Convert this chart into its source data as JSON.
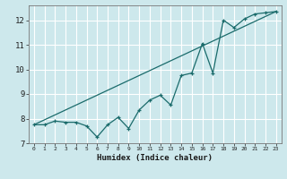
{
  "xlabel": "Humidex (Indice chaleur)",
  "bg_color": "#cde8ec",
  "grid_color": "#ffffff",
  "line_color": "#1a6b6b",
  "xlim": [
    -0.5,
    23.5
  ],
  "ylim": [
    7.0,
    12.6
  ],
  "yticks": [
    7,
    8,
    9,
    10,
    11,
    12
  ],
  "xticks": [
    0,
    1,
    2,
    3,
    4,
    5,
    6,
    7,
    8,
    9,
    10,
    11,
    12,
    13,
    14,
    15,
    16,
    17,
    18,
    19,
    20,
    21,
    22,
    23
  ],
  "data_x": [
    0,
    1,
    2,
    3,
    4,
    5,
    6,
    7,
    8,
    9,
    10,
    11,
    12,
    13,
    14,
    15,
    16,
    17,
    18,
    19,
    20,
    21,
    22,
    23
  ],
  "data_y": [
    7.75,
    7.75,
    7.9,
    7.85,
    7.85,
    7.7,
    7.25,
    7.75,
    8.05,
    7.6,
    8.35,
    8.75,
    8.95,
    8.55,
    9.75,
    9.85,
    11.05,
    9.85,
    12.0,
    11.7,
    12.05,
    12.25,
    12.3,
    12.35
  ],
  "trend_x": [
    0,
    23
  ],
  "trend_y": [
    7.75,
    12.35
  ]
}
